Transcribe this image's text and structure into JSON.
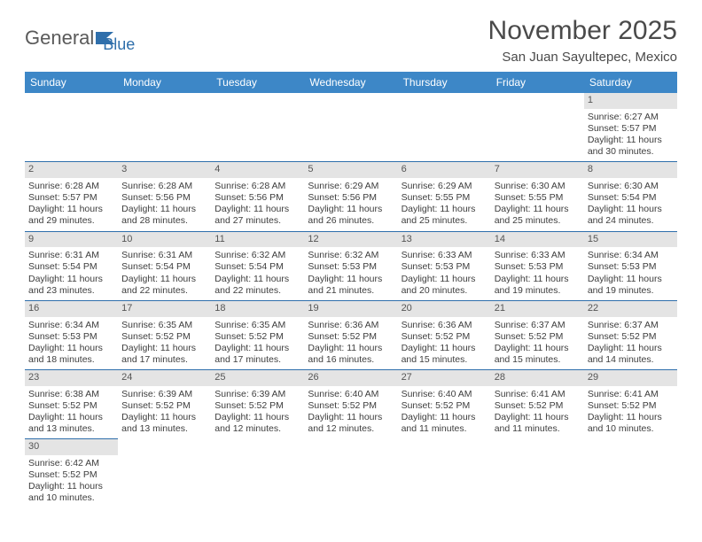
{
  "logo": {
    "text_general": "General",
    "text_blue": "Blue"
  },
  "header": {
    "month_title": "November 2025",
    "location": "San Juan Sayultepec, Mexico"
  },
  "colors": {
    "header_bg": "#3d87c7",
    "header_text": "#ffffff",
    "daynum_bg": "#e4e4e4",
    "row_divider": "#2f6fab",
    "text": "#3d3d3d",
    "logo_gray": "#5a5a5a",
    "logo_blue": "#2f6fab"
  },
  "weekdays": [
    "Sunday",
    "Monday",
    "Tuesday",
    "Wednesday",
    "Thursday",
    "Friday",
    "Saturday"
  ],
  "grid": {
    "first_weekday_index": 6,
    "num_days": 30
  },
  "days": {
    "1": {
      "sunrise": "Sunrise: 6:27 AM",
      "sunset": "Sunset: 5:57 PM",
      "day1": "Daylight: 11 hours",
      "day2": "and 30 minutes."
    },
    "2": {
      "sunrise": "Sunrise: 6:28 AM",
      "sunset": "Sunset: 5:57 PM",
      "day1": "Daylight: 11 hours",
      "day2": "and 29 minutes."
    },
    "3": {
      "sunrise": "Sunrise: 6:28 AM",
      "sunset": "Sunset: 5:56 PM",
      "day1": "Daylight: 11 hours",
      "day2": "and 28 minutes."
    },
    "4": {
      "sunrise": "Sunrise: 6:28 AM",
      "sunset": "Sunset: 5:56 PM",
      "day1": "Daylight: 11 hours",
      "day2": "and 27 minutes."
    },
    "5": {
      "sunrise": "Sunrise: 6:29 AM",
      "sunset": "Sunset: 5:56 PM",
      "day1": "Daylight: 11 hours",
      "day2": "and 26 minutes."
    },
    "6": {
      "sunrise": "Sunrise: 6:29 AM",
      "sunset": "Sunset: 5:55 PM",
      "day1": "Daylight: 11 hours",
      "day2": "and 25 minutes."
    },
    "7": {
      "sunrise": "Sunrise: 6:30 AM",
      "sunset": "Sunset: 5:55 PM",
      "day1": "Daylight: 11 hours",
      "day2": "and 25 minutes."
    },
    "8": {
      "sunrise": "Sunrise: 6:30 AM",
      "sunset": "Sunset: 5:54 PM",
      "day1": "Daylight: 11 hours",
      "day2": "and 24 minutes."
    },
    "9": {
      "sunrise": "Sunrise: 6:31 AM",
      "sunset": "Sunset: 5:54 PM",
      "day1": "Daylight: 11 hours",
      "day2": "and 23 minutes."
    },
    "10": {
      "sunrise": "Sunrise: 6:31 AM",
      "sunset": "Sunset: 5:54 PM",
      "day1": "Daylight: 11 hours",
      "day2": "and 22 minutes."
    },
    "11": {
      "sunrise": "Sunrise: 6:32 AM",
      "sunset": "Sunset: 5:54 PM",
      "day1": "Daylight: 11 hours",
      "day2": "and 22 minutes."
    },
    "12": {
      "sunrise": "Sunrise: 6:32 AM",
      "sunset": "Sunset: 5:53 PM",
      "day1": "Daylight: 11 hours",
      "day2": "and 21 minutes."
    },
    "13": {
      "sunrise": "Sunrise: 6:33 AM",
      "sunset": "Sunset: 5:53 PM",
      "day1": "Daylight: 11 hours",
      "day2": "and 20 minutes."
    },
    "14": {
      "sunrise": "Sunrise: 6:33 AM",
      "sunset": "Sunset: 5:53 PM",
      "day1": "Daylight: 11 hours",
      "day2": "and 19 minutes."
    },
    "15": {
      "sunrise": "Sunrise: 6:34 AM",
      "sunset": "Sunset: 5:53 PM",
      "day1": "Daylight: 11 hours",
      "day2": "and 19 minutes."
    },
    "16": {
      "sunrise": "Sunrise: 6:34 AM",
      "sunset": "Sunset: 5:53 PM",
      "day1": "Daylight: 11 hours",
      "day2": "and 18 minutes."
    },
    "17": {
      "sunrise": "Sunrise: 6:35 AM",
      "sunset": "Sunset: 5:52 PM",
      "day1": "Daylight: 11 hours",
      "day2": "and 17 minutes."
    },
    "18": {
      "sunrise": "Sunrise: 6:35 AM",
      "sunset": "Sunset: 5:52 PM",
      "day1": "Daylight: 11 hours",
      "day2": "and 17 minutes."
    },
    "19": {
      "sunrise": "Sunrise: 6:36 AM",
      "sunset": "Sunset: 5:52 PM",
      "day1": "Daylight: 11 hours",
      "day2": "and 16 minutes."
    },
    "20": {
      "sunrise": "Sunrise: 6:36 AM",
      "sunset": "Sunset: 5:52 PM",
      "day1": "Daylight: 11 hours",
      "day2": "and 15 minutes."
    },
    "21": {
      "sunrise": "Sunrise: 6:37 AM",
      "sunset": "Sunset: 5:52 PM",
      "day1": "Daylight: 11 hours",
      "day2": "and 15 minutes."
    },
    "22": {
      "sunrise": "Sunrise: 6:37 AM",
      "sunset": "Sunset: 5:52 PM",
      "day1": "Daylight: 11 hours",
      "day2": "and 14 minutes."
    },
    "23": {
      "sunrise": "Sunrise: 6:38 AM",
      "sunset": "Sunset: 5:52 PM",
      "day1": "Daylight: 11 hours",
      "day2": "and 13 minutes."
    },
    "24": {
      "sunrise": "Sunrise: 6:39 AM",
      "sunset": "Sunset: 5:52 PM",
      "day1": "Daylight: 11 hours",
      "day2": "and 13 minutes."
    },
    "25": {
      "sunrise": "Sunrise: 6:39 AM",
      "sunset": "Sunset: 5:52 PM",
      "day1": "Daylight: 11 hours",
      "day2": "and 12 minutes."
    },
    "26": {
      "sunrise": "Sunrise: 6:40 AM",
      "sunset": "Sunset: 5:52 PM",
      "day1": "Daylight: 11 hours",
      "day2": "and 12 minutes."
    },
    "27": {
      "sunrise": "Sunrise: 6:40 AM",
      "sunset": "Sunset: 5:52 PM",
      "day1": "Daylight: 11 hours",
      "day2": "and 11 minutes."
    },
    "28": {
      "sunrise": "Sunrise: 6:41 AM",
      "sunset": "Sunset: 5:52 PM",
      "day1": "Daylight: 11 hours",
      "day2": "and 11 minutes."
    },
    "29": {
      "sunrise": "Sunrise: 6:41 AM",
      "sunset": "Sunset: 5:52 PM",
      "day1": "Daylight: 11 hours",
      "day2": "and 10 minutes."
    },
    "30": {
      "sunrise": "Sunrise: 6:42 AM",
      "sunset": "Sunset: 5:52 PM",
      "day1": "Daylight: 11 hours",
      "day2": "and 10 minutes."
    }
  }
}
